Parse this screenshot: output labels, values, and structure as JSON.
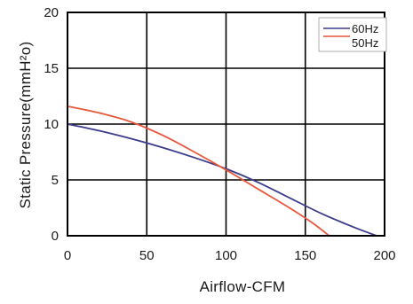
{
  "chart_data": {
    "type": "line",
    "title": "",
    "xlabel": "Airflow-CFM",
    "ylabel": "Static Pressure(mmH²o)",
    "xlim": [
      0,
      200
    ],
    "ylim": [
      0,
      20
    ],
    "x_ticks": [
      0,
      50,
      100,
      150,
      200
    ],
    "y_ticks": [
      0,
      5,
      10,
      15,
      20
    ],
    "grid": true,
    "legend_position": "top-right",
    "series": [
      {
        "name": "60Hz",
        "color": "#3c3c8c",
        "points": [
          [
            0,
            10.0
          ],
          [
            20,
            9.4
          ],
          [
            40,
            8.7
          ],
          [
            60,
            7.9
          ],
          [
            80,
            7.0
          ],
          [
            100,
            6.0
          ],
          [
            120,
            4.8
          ],
          [
            140,
            3.4
          ],
          [
            160,
            2.0
          ],
          [
            180,
            0.8
          ],
          [
            195,
            0.0
          ]
        ]
      },
      {
        "name": "50Hz",
        "color": "#e8573a",
        "points": [
          [
            0,
            11.6
          ],
          [
            20,
            11.0
          ],
          [
            40,
            10.2
          ],
          [
            60,
            9.0
          ],
          [
            80,
            7.5
          ],
          [
            100,
            5.9
          ],
          [
            120,
            4.2
          ],
          [
            140,
            2.5
          ],
          [
            155,
            1.1
          ],
          [
            165,
            0.0
          ]
        ]
      }
    ]
  }
}
